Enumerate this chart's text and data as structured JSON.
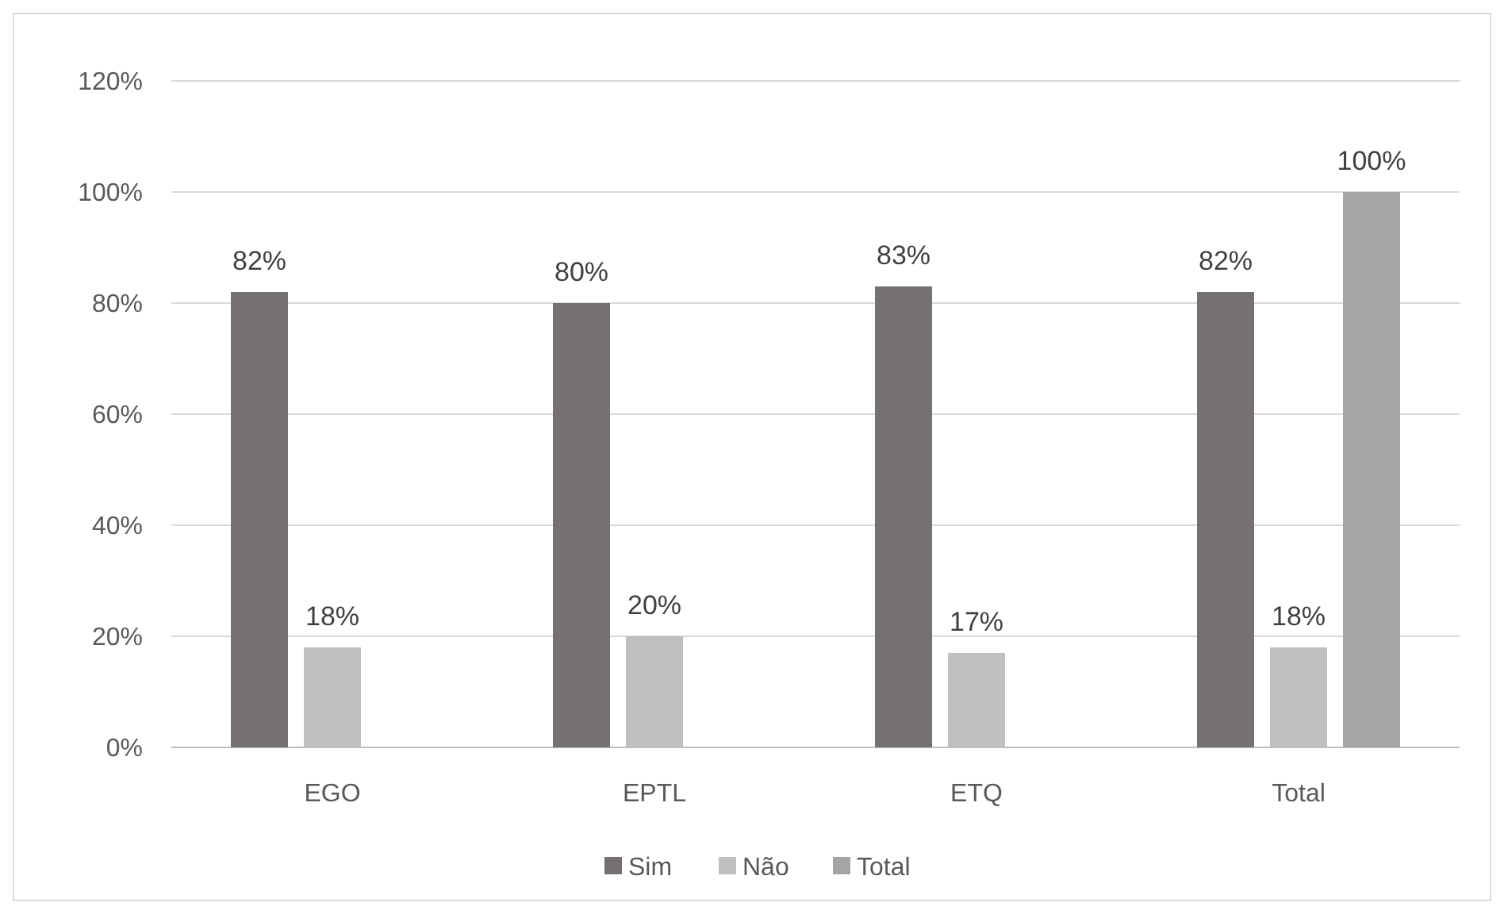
{
  "chart_data": {
    "type": "bar",
    "categories": [
      "EGO",
      "EPTL",
      "ETQ",
      "Total"
    ],
    "series": [
      {
        "name": "Sim",
        "color": "#757170",
        "values": [
          82,
          80,
          83,
          82
        ],
        "value_labels": [
          "82%",
          "80%",
          "83%",
          "82%"
        ]
      },
      {
        "name": "Não",
        "color": "#bfbfbf",
        "values": [
          18,
          20,
          17,
          18
        ],
        "value_labels": [
          "18%",
          "20%",
          "17%",
          "18%"
        ]
      },
      {
        "name": "Total",
        "color": "#a5a5a5",
        "values": [
          null,
          null,
          null,
          100
        ],
        "value_labels": [
          null,
          null,
          null,
          "100%"
        ]
      }
    ],
    "ylim": [
      0,
      120
    ],
    "yticks": [
      {
        "value": 0,
        "label": "0%"
      },
      {
        "value": 20,
        "label": "20%"
      },
      {
        "value": 40,
        "label": "40%"
      },
      {
        "value": 60,
        "label": "60%"
      },
      {
        "value": 80,
        "label": "80%"
      },
      {
        "value": 100,
        "label": "100%"
      },
      {
        "value": 120,
        "label": "120%"
      }
    ],
    "grid": "y",
    "legend": "bottom"
  }
}
